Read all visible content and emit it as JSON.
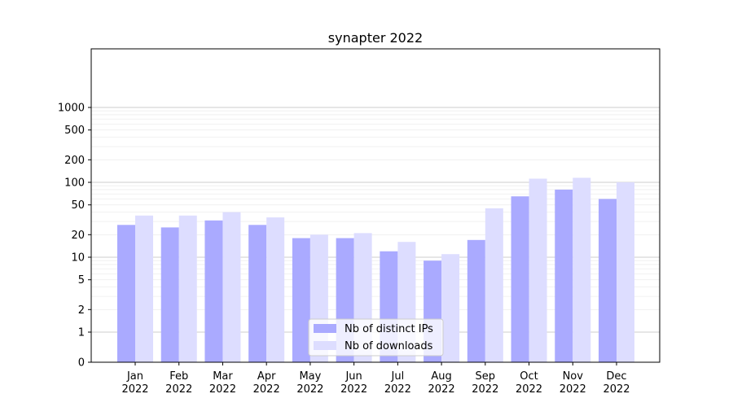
{
  "chart_data": {
    "type": "bar",
    "title": "synapter 2022",
    "xlabel": "",
    "ylabel": "",
    "yscale": "symlog",
    "ylim": [
      0,
      1200
    ],
    "grid": "y-major-and-minor",
    "legend_position": "bottom-center",
    "categories": [
      "Jan\n2022",
      "Feb\n2022",
      "Mar\n2022",
      "Apr\n2022",
      "May\n2022",
      "Jun\n2022",
      "Jul\n2022",
      "Aug\n2022",
      "Sep\n2022",
      "Oct\n2022",
      "Nov\n2022",
      "Dec\n2022"
    ],
    "category_lines": [
      [
        "Jan",
        "2022"
      ],
      [
        "Feb",
        "2022"
      ],
      [
        "Mar",
        "2022"
      ],
      [
        "Apr",
        "2022"
      ],
      [
        "May",
        "2022"
      ],
      [
        "Jun",
        "2022"
      ],
      [
        "Jul",
        "2022"
      ],
      [
        "Aug",
        "2022"
      ],
      [
        "Sep",
        "2022"
      ],
      [
        "Oct",
        "2022"
      ],
      [
        "Nov",
        "2022"
      ],
      [
        "Dec",
        "2022"
      ]
    ],
    "yticks": [
      0,
      1,
      2,
      5,
      10,
      20,
      50,
      100,
      200,
      500,
      1000
    ],
    "series": [
      {
        "name": "Nb of distinct IPs",
        "color": "#aaaaff",
        "values": [
          27,
          25,
          31,
          27,
          18,
          18,
          12,
          9,
          17,
          65,
          80,
          60
        ]
      },
      {
        "name": "Nb of downloads",
        "color": "#ddddff",
        "values": [
          36,
          36,
          40,
          34,
          20,
          21,
          16,
          11,
          45,
          112,
          115,
          100
        ]
      }
    ]
  }
}
